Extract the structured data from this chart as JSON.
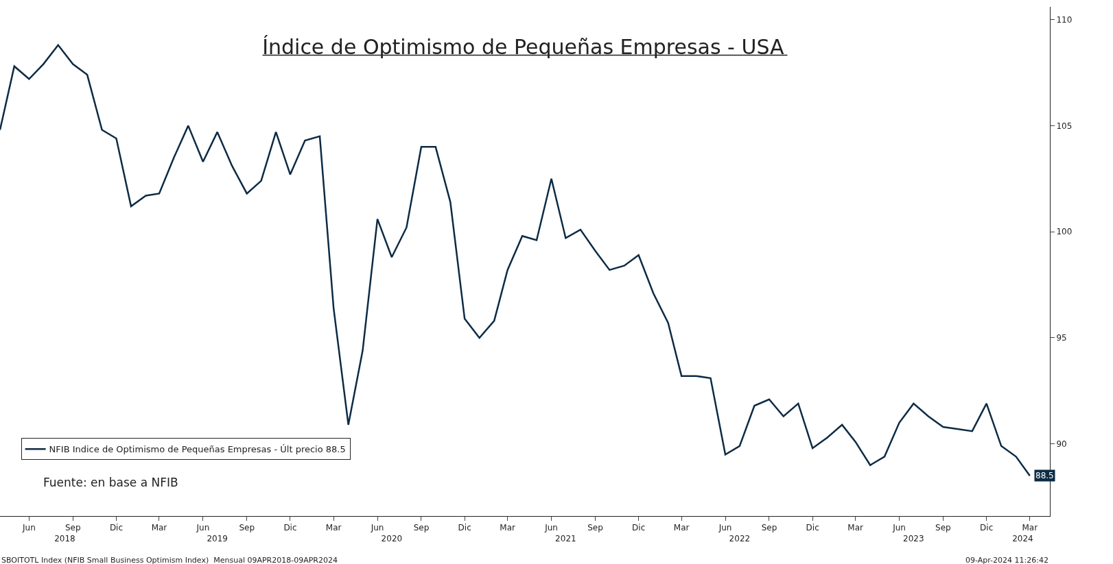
{
  "chart_data": {
    "type": "line",
    "title": "Índice de Optimismo de Pequeñas Empresas - USA",
    "x": [
      "2018-04",
      "2018-05",
      "2018-06",
      "2018-07",
      "2018-08",
      "2018-09",
      "2018-10",
      "2018-11",
      "2018-12",
      "2019-01",
      "2019-02",
      "2019-03",
      "2019-04",
      "2019-05",
      "2019-06",
      "2019-07",
      "2019-08",
      "2019-09",
      "2019-10",
      "2019-11",
      "2019-12",
      "2020-01",
      "2020-02",
      "2020-03",
      "2020-04",
      "2020-05",
      "2020-06",
      "2020-07",
      "2020-08",
      "2020-09",
      "2020-10",
      "2020-11",
      "2020-12",
      "2021-01",
      "2021-02",
      "2021-03",
      "2021-04",
      "2021-05",
      "2021-06",
      "2021-07",
      "2021-08",
      "2021-09",
      "2021-10",
      "2021-11",
      "2021-12",
      "2022-01",
      "2022-02",
      "2022-03",
      "2022-04",
      "2022-05",
      "2022-06",
      "2022-07",
      "2022-08",
      "2022-09",
      "2022-10",
      "2022-11",
      "2022-12",
      "2023-01",
      "2023-02",
      "2023-03",
      "2023-04",
      "2023-05",
      "2023-06",
      "2023-07",
      "2023-08",
      "2023-09",
      "2023-10",
      "2023-11",
      "2023-12",
      "2024-01",
      "2024-02",
      "2024-03"
    ],
    "series": [
      {
        "name": "NFIB Indice de Optimismo de Pequeñas Empresas - Últ precio 88.5",
        "color": "#0d2b45",
        "values": [
          104.8,
          107.8,
          107.2,
          107.9,
          108.8,
          107.9,
          107.4,
          104.8,
          104.4,
          101.2,
          101.7,
          101.8,
          103.5,
          105.0,
          103.3,
          104.7,
          103.1,
          101.8,
          102.4,
          104.7,
          102.7,
          104.3,
          104.5,
          96.4,
          90.9,
          94.4,
          100.6,
          98.8,
          100.2,
          104.0,
          104.0,
          101.4,
          95.9,
          95.0,
          95.8,
          98.2,
          99.8,
          99.6,
          102.5,
          99.7,
          100.1,
          99.1,
          98.2,
          98.4,
          98.9,
          97.1,
          95.7,
          93.2,
          93.2,
          93.1,
          89.5,
          89.9,
          91.8,
          92.1,
          91.3,
          91.9,
          89.8,
          90.3,
          90.9,
          90.1,
          89.0,
          89.4,
          91.0,
          91.9,
          91.3,
          90.8,
          90.7,
          90.6,
          91.9,
          89.9,
          89.4,
          88.5
        ],
        "value_labels": [
          null,
          null,
          null,
          null,
          null,
          null,
          null,
          null,
          null,
          null,
          null,
          null,
          null,
          null,
          null,
          null,
          null,
          null,
          null,
          null,
          null,
          null,
          null,
          null,
          null,
          null,
          null,
          null,
          null,
          null,
          null,
          null,
          null,
          null,
          null,
          null,
          null,
          null,
          null,
          null,
          null,
          null,
          null,
          null,
          null,
          null,
          null,
          null,
          null,
          null,
          null,
          null,
          null,
          null,
          null,
          null,
          null,
          null,
          null,
          null,
          null,
          null,
          null,
          null,
          null,
          null,
          null,
          null,
          null,
          null,
          null,
          "88.5"
        ]
      }
    ],
    "xlim": [
      "2018-04-01",
      "2024-04-12"
    ],
    "xticks": [
      {
        "value": "2018-06-01",
        "label": "Jun"
      },
      {
        "value": "2018-09-01",
        "label": "Sep"
      },
      {
        "value": "2018-12-01",
        "label": "Dic"
      },
      {
        "value": "2019-03-01",
        "label": "Mar"
      },
      {
        "value": "2019-06-01",
        "label": "Jun"
      },
      {
        "value": "2019-09-01",
        "label": "Sep"
      },
      {
        "value": "2019-12-01",
        "label": "Dic"
      },
      {
        "value": "2020-03-01",
        "label": "Mar"
      },
      {
        "value": "2020-06-01",
        "label": "Jun"
      },
      {
        "value": "2020-09-01",
        "label": "Sep"
      },
      {
        "value": "2020-12-01",
        "label": "Dic"
      },
      {
        "value": "2021-03-01",
        "label": "Mar"
      },
      {
        "value": "2021-06-01",
        "label": "Jun"
      },
      {
        "value": "2021-09-01",
        "label": "Sep"
      },
      {
        "value": "2021-12-01",
        "label": "Dic"
      },
      {
        "value": "2022-03-01",
        "label": "Mar"
      },
      {
        "value": "2022-06-01",
        "label": "Jun"
      },
      {
        "value": "2022-09-01",
        "label": "Sep"
      },
      {
        "value": "2022-12-01",
        "label": "Dic"
      },
      {
        "value": "2023-03-01",
        "label": "Mar"
      },
      {
        "value": "2023-06-01",
        "label": "Jun"
      },
      {
        "value": "2023-09-01",
        "label": "Sep"
      },
      {
        "value": "2023-12-01",
        "label": "Dic"
      },
      {
        "value": "2024-03-01",
        "label": "Mar"
      }
    ],
    "x2lim": [
      "2018-04-01",
      "2024-04-12"
    ],
    "x2ticks": [
      {
        "value": "2018-08-15",
        "label": "2018"
      },
      {
        "value": "2019-07-01",
        "label": "2019"
      },
      {
        "value": "2020-07-01",
        "label": "2020"
      },
      {
        "value": "2021-07-01",
        "label": "2021"
      },
      {
        "value": "2022-07-01",
        "label": "2022"
      },
      {
        "value": "2023-07-01",
        "label": "2023"
      },
      {
        "value": "2024-02-15",
        "label": "2024"
      }
    ],
    "ylim": [
      86.6,
      110.6
    ],
    "yticks": [
      90,
      95,
      100,
      105,
      110
    ],
    "legend": "bottom left",
    "line_style": "solid",
    "marker": "none",
    "annotations": [
      "Fuente: en base a NFIB",
      "SBOITOTL Index (NFIB Small Business Optimism Index)  Mensual 09APR2018-09APR2024",
      "09-Apr-2024 11:26:42"
    ]
  }
}
